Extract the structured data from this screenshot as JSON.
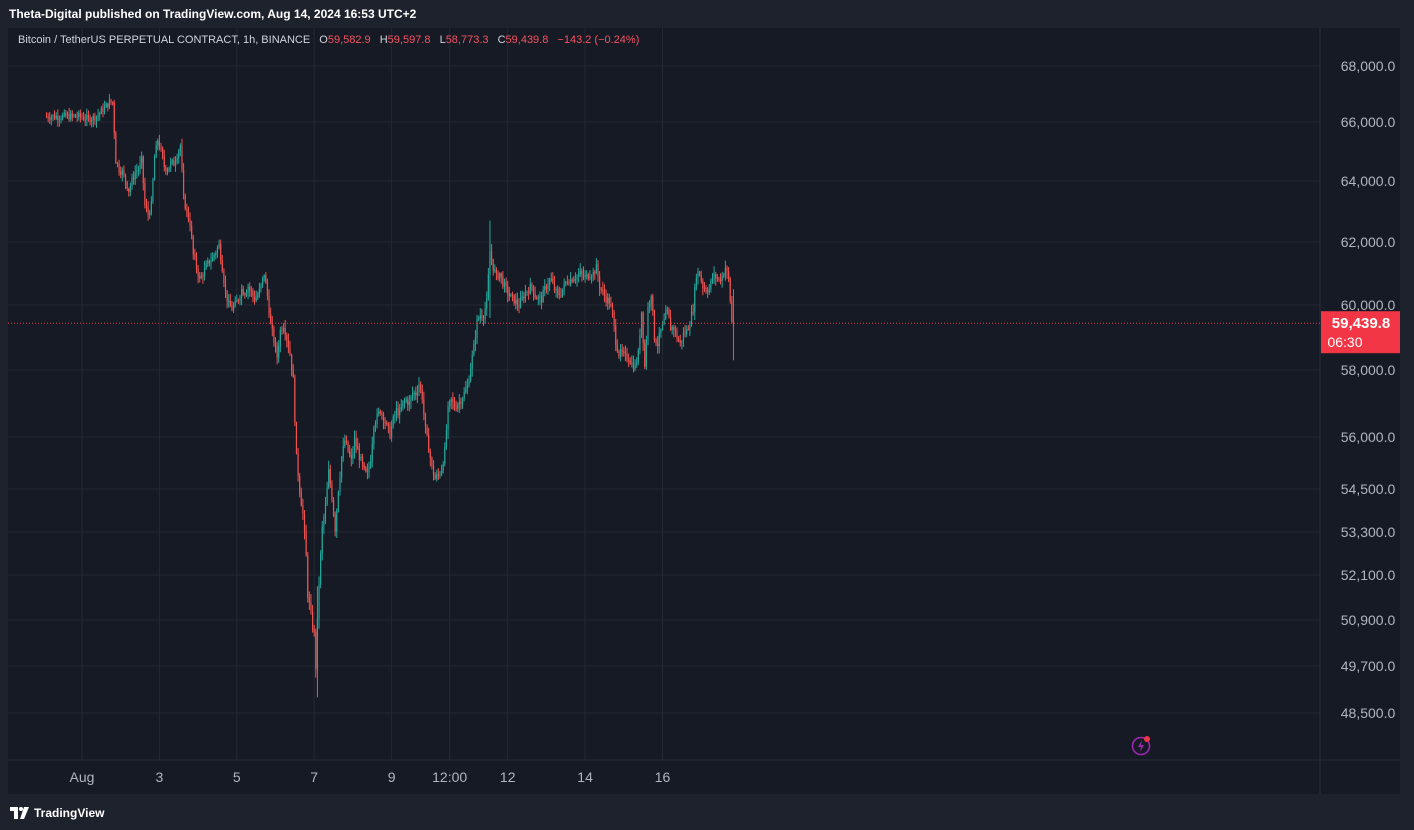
{
  "header": {
    "publisher_text": "Theta-Digital published on TradingView.com, Aug 14, 2024 16:53 UTC+2"
  },
  "legend": {
    "symbol": "Bitcoin / TetherUS PERPETUAL CONTRACT, 1h, BINANCE",
    "o_label": "O",
    "o_value": "59,582.9",
    "h_label": "H",
    "h_value": "59,597.8",
    "l_label": "L",
    "l_value": "58,773.3",
    "c_label": "C",
    "c_value": "59,439.8",
    "change": "−143.2 (−0.24%)"
  },
  "price_label": {
    "price": "59,439.8",
    "countdown": "06:30"
  },
  "footer": {
    "brand": "TradingView"
  },
  "colors": {
    "up": "#26a69a",
    "down": "#ef5350",
    "background": "#161a25",
    "grid": "#242833",
    "axis_text": "#b2b5be",
    "price_tag": "#f23645"
  },
  "chart_data": {
    "type": "candlestick",
    "symbol": "Bitcoin / TetherUS PERPETUAL CONTRACT",
    "interval": "1h",
    "y_ticks": [
      "68,000.0",
      "66,000.0",
      "64,000.0",
      "62,000.0",
      "60,000.0",
      "58,000.0",
      "56,000.0",
      "54,500.0",
      "53,300.0",
      "52,100.0",
      "50,900.0",
      "49,700.0",
      "48,500.0"
    ],
    "y_tick_values": [
      68000,
      66000,
      64000,
      62000,
      60000,
      58000,
      56000,
      54500,
      53300,
      52100,
      50900,
      49700,
      48500
    ],
    "x_ticks": [
      "Aug",
      "3",
      "5",
      "7",
      "9",
      "12:00",
      "12",
      "14",
      "16"
    ],
    "x_tick_hours": [
      0,
      48,
      96,
      144,
      192,
      228,
      264,
      312,
      360
    ],
    "start_hour": -22,
    "last_price": 59439.8,
    "grid": true,
    "anchors": [
      [
        0,
        66200
      ],
      [
        5,
        66100
      ],
      [
        10,
        66200
      ],
      [
        15,
        66500
      ],
      [
        18,
        66700
      ],
      [
        20,
        66700
      ],
      [
        22,
        64700
      ],
      [
        24,
        64400
      ],
      [
        26,
        64300
      ],
      [
        28,
        64000
      ],
      [
        30,
        63700
      ],
      [
        32,
        64000
      ],
      [
        34,
        64300
      ],
      [
        36,
        64400
      ],
      [
        38,
        64700
      ],
      [
        40,
        63200
      ],
      [
        42,
        62900
      ],
      [
        44,
        63200
      ],
      [
        46,
        64800
      ],
      [
        48,
        65400
      ],
      [
        50,
        65000
      ],
      [
        52,
        64500
      ],
      [
        54,
        64400
      ],
      [
        56,
        64600
      ],
      [
        58,
        64600
      ],
      [
        60,
        64900
      ],
      [
        62,
        65200
      ],
      [
        64,
        63400
      ],
      [
        66,
        63000
      ],
      [
        68,
        62600
      ],
      [
        70,
        61600
      ],
      [
        72,
        61200
      ],
      [
        74,
        60800
      ],
      [
        76,
        61000
      ],
      [
        78,
        61200
      ],
      [
        80,
        61400
      ],
      [
        82,
        61500
      ],
      [
        84,
        61700
      ],
      [
        86,
        61900
      ],
      [
        88,
        61200
      ],
      [
        90,
        60400
      ],
      [
        92,
        60000
      ],
      [
        94,
        59900
      ],
      [
        96,
        60000
      ],
      [
        98,
        60200
      ],
      [
        100,
        60500
      ],
      [
        102,
        60400
      ],
      [
        104,
        60600
      ],
      [
        106,
        60400
      ],
      [
        108,
        60200
      ],
      [
        110,
        60300
      ],
      [
        112,
        60600
      ],
      [
        114,
        61000
      ],
      [
        116,
        60300
      ],
      [
        118,
        59400
      ],
      [
        120,
        58900
      ],
      [
        122,
        58400
      ],
      [
        124,
        59200
      ],
      [
        126,
        59400
      ],
      [
        128,
        59000
      ],
      [
        130,
        58500
      ],
      [
        132,
        57700
      ],
      [
        134,
        55400
      ],
      [
        136,
        54500
      ],
      [
        138,
        53800
      ],
      [
        140,
        52600
      ],
      [
        141,
        51600
      ],
      [
        143,
        51000
      ],
      [
        145,
        50500
      ],
      [
        146,
        49700
      ],
      [
        148,
        51900
      ],
      [
        150,
        53400
      ],
      [
        152,
        54000
      ],
      [
        154,
        55000
      ],
      [
        156,
        54300
      ],
      [
        158,
        53400
      ],
      [
        160,
        54500
      ],
      [
        162,
        55400
      ],
      [
        164,
        55900
      ],
      [
        166,
        55600
      ],
      [
        168,
        55300
      ],
      [
        170,
        55900
      ],
      [
        172,
        55600
      ],
      [
        174,
        55300
      ],
      [
        176,
        55000
      ],
      [
        178,
        54900
      ],
      [
        180,
        55400
      ],
      [
        182,
        56400
      ],
      [
        184,
        56600
      ],
      [
        186,
        56800
      ],
      [
        188,
        56600
      ],
      [
        190,
        56300
      ],
      [
        192,
        56100
      ],
      [
        194,
        56500
      ],
      [
        196,
        56800
      ],
      [
        198,
        56700
      ],
      [
        200,
        57000
      ],
      [
        202,
        57100
      ],
      [
        204,
        57000
      ],
      [
        206,
        57300
      ],
      [
        208,
        57300
      ],
      [
        210,
        57600
      ],
      [
        212,
        57200
      ],
      [
        214,
        56200
      ],
      [
        216,
        55700
      ],
      [
        218,
        55100
      ],
      [
        220,
        54800
      ],
      [
        222,
        54900
      ],
      [
        224,
        55100
      ],
      [
        226,
        55600
      ],
      [
        228,
        56800
      ],
      [
        230,
        57100
      ],
      [
        232,
        56900
      ],
      [
        234,
        57000
      ],
      [
        236,
        57100
      ],
      [
        238,
        57300
      ],
      [
        240,
        57500
      ],
      [
        242,
        58100
      ],
      [
        244,
        58700
      ],
      [
        246,
        59500
      ],
      [
        248,
        59700
      ],
      [
        250,
        59700
      ],
      [
        252,
        60100
      ],
      [
        254,
        61700
      ],
      [
        256,
        61200
      ],
      [
        258,
        60900
      ],
      [
        260,
        61000
      ],
      [
        262,
        60700
      ],
      [
        264,
        60500
      ],
      [
        266,
        60300
      ],
      [
        268,
        60200
      ],
      [
        270,
        60100
      ],
      [
        272,
        60000
      ],
      [
        274,
        60200
      ],
      [
        276,
        60400
      ],
      [
        278,
        60500
      ],
      [
        280,
        60600
      ],
      [
        282,
        60300
      ],
      [
        284,
        60200
      ],
      [
        286,
        60200
      ],
      [
        288,
        60500
      ],
      [
        290,
        60700
      ],
      [
        292,
        60800
      ],
      [
        294,
        60500
      ],
      [
        296,
        60300
      ],
      [
        298,
        60400
      ],
      [
        300,
        60600
      ],
      [
        302,
        60800
      ],
      [
        304,
        60800
      ],
      [
        306,
        60900
      ],
      [
        308,
        60900
      ],
      [
        310,
        61000
      ],
      [
        312,
        60900
      ],
      [
        314,
        60900
      ],
      [
        316,
        61000
      ],
      [
        318,
        61000
      ],
      [
        320,
        61200
      ],
      [
        322,
        60600
      ],
      [
        324,
        60400
      ],
      [
        326,
        60200
      ],
      [
        328,
        60100
      ],
      [
        330,
        59700
      ],
      [
        332,
        58900
      ],
      [
        334,
        58500
      ],
      [
        336,
        58500
      ],
      [
        338,
        58400
      ],
      [
        340,
        58400
      ],
      [
        342,
        58200
      ],
      [
        344,
        58100
      ],
      [
        346,
        58500
      ],
      [
        348,
        59800
      ],
      [
        350,
        58100
      ],
      [
        352,
        59900
      ],
      [
        354,
        60400
      ],
      [
        356,
        59000
      ],
      [
        358,
        58800
      ],
      [
        360,
        59200
      ],
      [
        362,
        59500
      ],
      [
        364,
        59800
      ],
      [
        366,
        59300
      ],
      [
        368,
        59300
      ],
      [
        370,
        59000
      ],
      [
        372,
        58800
      ],
      [
        374,
        59100
      ],
      [
        376,
        59200
      ],
      [
        378,
        59500
      ],
      [
        380,
        59900
      ],
      [
        382,
        61000
      ],
      [
        384,
        61000
      ],
      [
        386,
        60600
      ],
      [
        388,
        60500
      ],
      [
        390,
        60500
      ],
      [
        392,
        60900
      ],
      [
        394,
        60900
      ],
      [
        396,
        60800
      ],
      [
        398,
        60900
      ],
      [
        400,
        61200
      ],
      [
        402,
        60800
      ],
      [
        404,
        59500
      ]
    ]
  }
}
